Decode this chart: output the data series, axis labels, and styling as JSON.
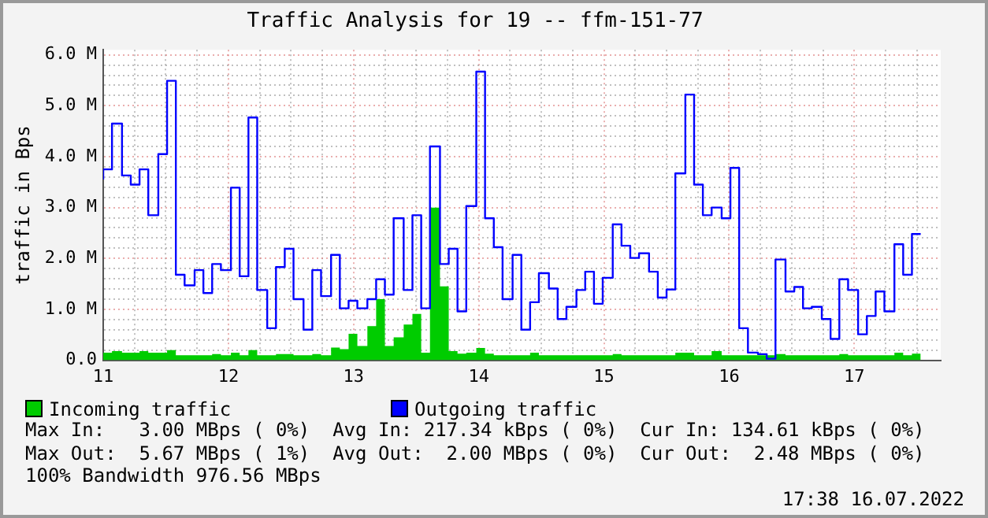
{
  "chart_data": {
    "type": "step",
    "title": "Traffic Analysis for 19 -- ffm-151-77",
    "ylabel": "traffic in Bps",
    "x": [
      11.0,
      11.07,
      11.15,
      11.22,
      11.29,
      11.36,
      11.44,
      11.51,
      11.58,
      11.65,
      11.73,
      11.8,
      11.87,
      11.94,
      12.02,
      12.09,
      12.16,
      12.23,
      12.31,
      12.38,
      12.45,
      12.52,
      12.6,
      12.67,
      12.74,
      12.82,
      12.89,
      12.96,
      13.03,
      13.11,
      13.18,
      13.25,
      13.32,
      13.4,
      13.47,
      13.54,
      13.61,
      13.69,
      13.76,
      13.83,
      13.9,
      13.98,
      14.05,
      14.12,
      14.19,
      14.27,
      14.34,
      14.41,
      14.48,
      14.56,
      14.63,
      14.7,
      14.78,
      14.85,
      14.92,
      14.99,
      15.07,
      15.14,
      15.21,
      15.28,
      15.36,
      15.43,
      15.5,
      15.57,
      15.65,
      15.72,
      15.79,
      15.86,
      15.94,
      16.01,
      16.08,
      16.15,
      16.23,
      16.3,
      16.37,
      16.45,
      16.52,
      16.59,
      16.66,
      16.74,
      16.81,
      16.88,
      16.95,
      17.03,
      17.1,
      17.17,
      17.24,
      17.32,
      17.39,
      17.46,
      17.53
    ],
    "series": [
      {
        "name": "Incoming traffic",
        "type": "area",
        "color": "#00cc00",
        "values": [
          0.15,
          0.15,
          0.18,
          0.15,
          0.15,
          0.18,
          0.15,
          0.15,
          0.2,
          0.1,
          0.1,
          0.1,
          0.1,
          0.12,
          0.1,
          0.15,
          0.1,
          0.2,
          0.1,
          0.1,
          0.12,
          0.12,
          0.1,
          0.1,
          0.12,
          0.1,
          0.25,
          0.22,
          0.52,
          0.28,
          0.67,
          1.2,
          0.28,
          0.45,
          0.7,
          0.91,
          0.15,
          3.0,
          1.45,
          0.18,
          0.13,
          0.15,
          0.24,
          0.13,
          0.1,
          0.1,
          0.1,
          0.1,
          0.15,
          0.1,
          0.1,
          0.1,
          0.1,
          0.1,
          0.1,
          0.1,
          0.1,
          0.12,
          0.1,
          0.1,
          0.1,
          0.1,
          0.1,
          0.1,
          0.15,
          0.15,
          0.1,
          0.1,
          0.18,
          0.1,
          0.1,
          0.1,
          0.1,
          0.1,
          0.1,
          0.12,
          0.1,
          0.1,
          0.1,
          0.1,
          0.1,
          0.1,
          0.12,
          0.1,
          0.1,
          0.1,
          0.1,
          0.1,
          0.15,
          0.1,
          0.13
        ]
      },
      {
        "name": "Outgoing traffic",
        "type": "step",
        "color": "#0000ff",
        "values": [
          3.55,
          3.75,
          4.65,
          3.63,
          3.45,
          3.75,
          2.85,
          4.05,
          5.49,
          1.68,
          1.47,
          1.77,
          1.32,
          1.89,
          1.77,
          3.39,
          1.65,
          4.77,
          1.38,
          0.63,
          1.83,
          2.19,
          1.2,
          0.6,
          1.77,
          1.26,
          2.07,
          1.02,
          1.17,
          1.02,
          1.2,
          1.59,
          1.29,
          2.79,
          1.38,
          2.85,
          1.02,
          4.2,
          1.89,
          2.19,
          0.96,
          3.03,
          5.67,
          2.79,
          2.22,
          1.2,
          2.07,
          0.6,
          1.14,
          1.71,
          1.41,
          0.81,
          1.05,
          1.38,
          1.74,
          1.11,
          1.62,
          2.67,
          2.25,
          2.01,
          2.1,
          1.74,
          1.23,
          1.39,
          3.67,
          5.22,
          3.45,
          2.85,
          3.0,
          2.79,
          3.78,
          0.63,
          0.15,
          0.12,
          0.03,
          1.98,
          1.35,
          1.44,
          1.02,
          1.05,
          0.81,
          0.42,
          1.59,
          1.38,
          0.51,
          0.87,
          1.35,
          0.96,
          2.28,
          1.68,
          2.48
        ]
      }
    ],
    "xlim": [
      11,
      17.69
    ],
    "xticks": [
      11,
      {
        "value": 11.25,
        "label": null
      },
      {
        "value": 11.5,
        "label": null
      },
      {
        "value": 11.75,
        "label": null
      },
      12,
      {
        "value": 12.25,
        "label": null
      },
      {
        "value": 12.5,
        "label": null
      },
      {
        "value": 12.75,
        "label": null
      },
      13,
      {
        "value": 13.25,
        "label": null
      },
      {
        "value": 13.5,
        "label": null
      },
      {
        "value": 13.75,
        "label": null
      },
      14,
      {
        "value": 14.25,
        "label": null
      },
      {
        "value": 14.5,
        "label": null
      },
      {
        "value": 14.75,
        "label": null
      },
      15,
      {
        "value": 15.25,
        "label": null
      },
      {
        "value": 15.5,
        "label": null
      },
      {
        "value": 15.75,
        "label": null
      },
      16,
      {
        "value": 16.25,
        "label": null
      },
      {
        "value": 16.5,
        "label": null
      },
      {
        "value": 16.75,
        "label": null
      },
      17,
      {
        "value": 17.25,
        "label": null
      },
      {
        "value": 17.5,
        "label": null
      }
    ],
    "ylim": [
      0,
      6.1
    ],
    "yticks": [
      {
        "value": 0,
        "label": "0.0"
      },
      {
        "value": 0.2,
        "label": null
      },
      {
        "value": 0.4,
        "label": null
      },
      {
        "value": 0.6,
        "label": null
      },
      {
        "value": 0.8,
        "label": null
      },
      {
        "value": 1,
        "label": "1.0 M"
      },
      {
        "value": 1.2,
        "label": null
      },
      {
        "value": 1.4,
        "label": null
      },
      {
        "value": 1.6,
        "label": null
      },
      {
        "value": 1.8,
        "label": null
      },
      {
        "value": 2,
        "label": "2.0 M"
      },
      {
        "value": 2.2,
        "label": null
      },
      {
        "value": 2.4,
        "label": null
      },
      {
        "value": 2.6,
        "label": null
      },
      {
        "value": 2.8,
        "label": null
      },
      {
        "value": 3,
        "label": "3.0 M"
      },
      {
        "value": 3.2,
        "label": null
      },
      {
        "value": 3.4,
        "label": null
      },
      {
        "value": 3.6,
        "label": null
      },
      {
        "value": 3.8,
        "label": null
      },
      {
        "value": 4,
        "label": "4.0 M"
      },
      {
        "value": 4.2,
        "label": null
      },
      {
        "value": 4.4,
        "label": null
      },
      {
        "value": 4.6,
        "label": null
      },
      {
        "value": 4.8,
        "label": null
      },
      {
        "value": 5,
        "label": "5.0 M"
      },
      {
        "value": 5.2,
        "label": null
      },
      {
        "value": 5.4,
        "label": null
      },
      {
        "value": 5.6,
        "label": null
      },
      {
        "value": 5.8,
        "label": null
      },
      {
        "value": 6,
        "label": "6.0 M"
      }
    ],
    "grid": true,
    "legend": "bottom",
    "annotations": [
      "Max In:   3.00 MBps ( 0%)  Avg In: 217.34 kBps ( 0%)  Cur In: 134.61 kBps ( 0%)",
      "Max Out:  5.67 MBps ( 1%)  Avg Out:  2.00 MBps ( 0%)  Cur Out:  2.48 MBps ( 0%)",
      "100% Bandwidth 976.56 MBps",
      "17:38 16.07.2022"
    ]
  }
}
